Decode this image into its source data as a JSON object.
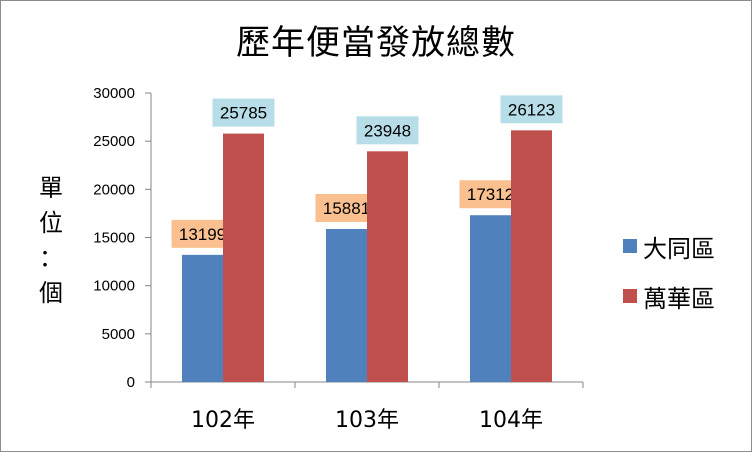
{
  "chart_data": {
    "type": "bar",
    "title": "歷年便當發放總數",
    "ylabel": "單\n位\n：\n個",
    "xlabel": "",
    "categories": [
      "102年",
      "103年",
      "104年"
    ],
    "series": [
      {
        "name": "大同區",
        "values": [
          13199,
          15881,
          17312
        ],
        "color": "#4f81bd",
        "label_bg": "#fac090"
      },
      {
        "name": "萬華區",
        "values": [
          25785,
          23948,
          26123
        ],
        "color": "#c0504d",
        "label_bg": "#b7dee8"
      }
    ],
    "ylim": [
      0,
      30000
    ],
    "yticks": [
      0,
      5000,
      10000,
      15000,
      20000,
      25000,
      30000
    ],
    "grid": false,
    "legend": "right"
  }
}
